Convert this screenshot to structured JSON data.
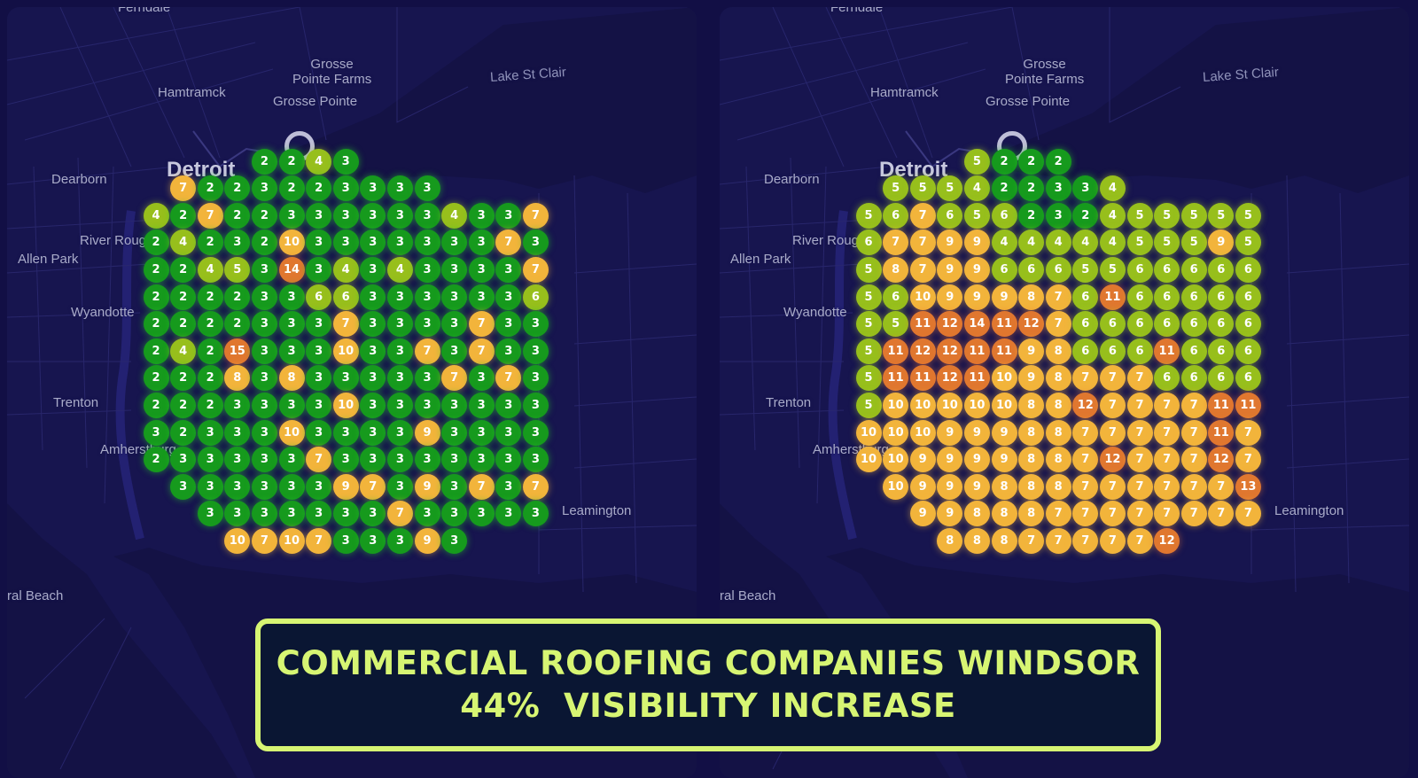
{
  "banner": {
    "line1": "COMMERCIAL ROOFING COMPANIES WINDSOR",
    "line2": "44%  VISIBILITY INCREASE"
  },
  "colors": {
    "background": "#120f45",
    "map": "#17154f",
    "rank_green": "#169a1d",
    "rank_yellowgreen": "#97bf1c",
    "rank_orange": "#f2b43b",
    "rank_red": "#e0772f",
    "banner_accent": "#d7f573",
    "banner_fill": "#0a1633"
  },
  "map_labels": [
    {
      "id": "ferndale",
      "text": "Ferndale"
    },
    {
      "id": "grosse-pointe-farms",
      "text": "Grosse\nPointe Farms"
    },
    {
      "id": "hamtramck",
      "text": "Hamtramck"
    },
    {
      "id": "grosse-pointe",
      "text": "Grosse Pointe"
    },
    {
      "id": "lake-st-clair",
      "text": "Lake St Clair"
    },
    {
      "id": "detroit",
      "text": "Detroit"
    },
    {
      "id": "dearborn",
      "text": "Dearborn"
    },
    {
      "id": "river-rouge",
      "text": "River Rouge"
    },
    {
      "id": "allen-park",
      "text": "Allen Park"
    },
    {
      "id": "wyandotte",
      "text": "Wyandotte"
    },
    {
      "id": "trenton",
      "text": "Trenton"
    },
    {
      "id": "amherstburg",
      "text": "Amherstburg"
    },
    {
      "id": "leamington",
      "text": "Leamington"
    },
    {
      "id": "rockwood-beach",
      "text": "ral Beach"
    }
  ],
  "grids": {
    "before": {
      "name": "before",
      "rows": [
        {
          "start": 4,
          "values": [
            2,
            2,
            4,
            3
          ]
        },
        {
          "start": 1,
          "values": [
            7,
            2,
            2,
            3,
            2,
            2,
            3,
            3,
            3,
            3
          ]
        },
        {
          "start": 0,
          "values": [
            4,
            2,
            7,
            2,
            2,
            3,
            3,
            3,
            3,
            3,
            3,
            4,
            3,
            3,
            7
          ]
        },
        {
          "start": 0,
          "values": [
            2,
            4,
            2,
            3,
            2,
            10,
            3,
            3,
            3,
            3,
            3,
            3,
            3,
            7,
            3
          ]
        },
        {
          "start": 0,
          "values": [
            2,
            2,
            4,
            5,
            3,
            14,
            3,
            4,
            3,
            4,
            3,
            3,
            3,
            3,
            7
          ]
        },
        {
          "start": 0,
          "values": [
            2,
            2,
            2,
            2,
            3,
            3,
            6,
            6,
            3,
            3,
            3,
            3,
            3,
            3,
            6
          ]
        },
        {
          "start": 0,
          "values": [
            2,
            2,
            2,
            2,
            3,
            3,
            3,
            7,
            3,
            3,
            3,
            3,
            7,
            3,
            3
          ]
        },
        {
          "start": 0,
          "values": [
            2,
            4,
            2,
            15,
            3,
            3,
            3,
            10,
            3,
            3,
            7,
            3,
            7,
            3,
            3
          ]
        },
        {
          "start": 0,
          "values": [
            2,
            2,
            2,
            8,
            3,
            8,
            3,
            3,
            3,
            3,
            3,
            7,
            3,
            7,
            3
          ]
        },
        {
          "start": 0,
          "values": [
            2,
            2,
            2,
            3,
            3,
            3,
            3,
            10,
            3,
            3,
            3,
            3,
            3,
            3,
            3
          ]
        },
        {
          "start": 0,
          "values": [
            3,
            2,
            3,
            3,
            3,
            10,
            3,
            3,
            3,
            3,
            9,
            3,
            3,
            3,
            3
          ]
        },
        {
          "start": 0,
          "values": [
            2,
            3,
            3,
            3,
            3,
            3,
            7,
            3,
            3,
            3,
            3,
            3,
            3,
            3,
            3
          ]
        },
        {
          "start": 1,
          "values": [
            3,
            3,
            3,
            3,
            3,
            3,
            9,
            7,
            3,
            9,
            3,
            7,
            3,
            7
          ]
        },
        {
          "start": 2,
          "values": [
            3,
            3,
            3,
            3,
            3,
            3,
            3,
            7,
            3,
            3,
            3,
            3,
            3
          ]
        },
        {
          "start": 3,
          "values": [
            10,
            7,
            10,
            7,
            3,
            3,
            3,
            9,
            3
          ]
        }
      ]
    },
    "after": {
      "name": "after",
      "rows": [
        {
          "start": 4,
          "values": [
            5,
            2,
            2,
            2
          ]
        },
        {
          "start": 1,
          "values": [
            5,
            5,
            5,
            4,
            2,
            2,
            3,
            3,
            4
          ]
        },
        {
          "start": 0,
          "values": [
            5,
            6,
            7,
            6,
            5,
            6,
            2,
            3,
            2,
            4,
            5,
            5,
            5,
            5,
            5
          ]
        },
        {
          "start": 0,
          "values": [
            6,
            7,
            7,
            9,
            9,
            4,
            4,
            4,
            4,
            4,
            5,
            5,
            5,
            9,
            5
          ]
        },
        {
          "start": 0,
          "values": [
            5,
            8,
            7,
            9,
            9,
            6,
            6,
            6,
            5,
            5,
            6,
            6,
            6,
            6,
            6
          ]
        },
        {
          "start": 0,
          "values": [
            5,
            6,
            10,
            9,
            9,
            9,
            8,
            7,
            6,
            11,
            6,
            6,
            6,
            6,
            6
          ]
        },
        {
          "start": 0,
          "values": [
            5,
            5,
            11,
            12,
            14,
            11,
            12,
            7,
            6,
            6,
            6,
            6,
            6,
            6,
            6
          ]
        },
        {
          "start": 0,
          "values": [
            5,
            11,
            12,
            12,
            11,
            11,
            9,
            8,
            6,
            6,
            6,
            11,
            6,
            6,
            6
          ]
        },
        {
          "start": 0,
          "values": [
            5,
            11,
            11,
            12,
            11,
            10,
            9,
            8,
            7,
            7,
            7,
            6,
            6,
            6,
            6
          ]
        },
        {
          "start": 0,
          "values": [
            5,
            10,
            10,
            10,
            10,
            10,
            8,
            8,
            12,
            7,
            7,
            7,
            7,
            11,
            11
          ]
        },
        {
          "start": 0,
          "values": [
            10,
            10,
            10,
            9,
            9,
            9,
            8,
            8,
            7,
            7,
            7,
            7,
            7,
            11,
            7
          ]
        },
        {
          "start": 0,
          "values": [
            10,
            10,
            9,
            9,
            9,
            9,
            8,
            8,
            7,
            12,
            7,
            7,
            7,
            12,
            7
          ]
        },
        {
          "start": 1,
          "values": [
            10,
            9,
            9,
            9,
            8,
            8,
            8,
            7,
            7,
            7,
            7,
            7,
            7,
            13
          ]
        },
        {
          "start": 2,
          "values": [
            9,
            9,
            8,
            8,
            8,
            7,
            7,
            7,
            7,
            7,
            7,
            7,
            7
          ]
        },
        {
          "start": 3,
          "values": [
            8,
            8,
            8,
            7,
            7,
            7,
            7,
            7,
            12
          ]
        }
      ]
    }
  }
}
